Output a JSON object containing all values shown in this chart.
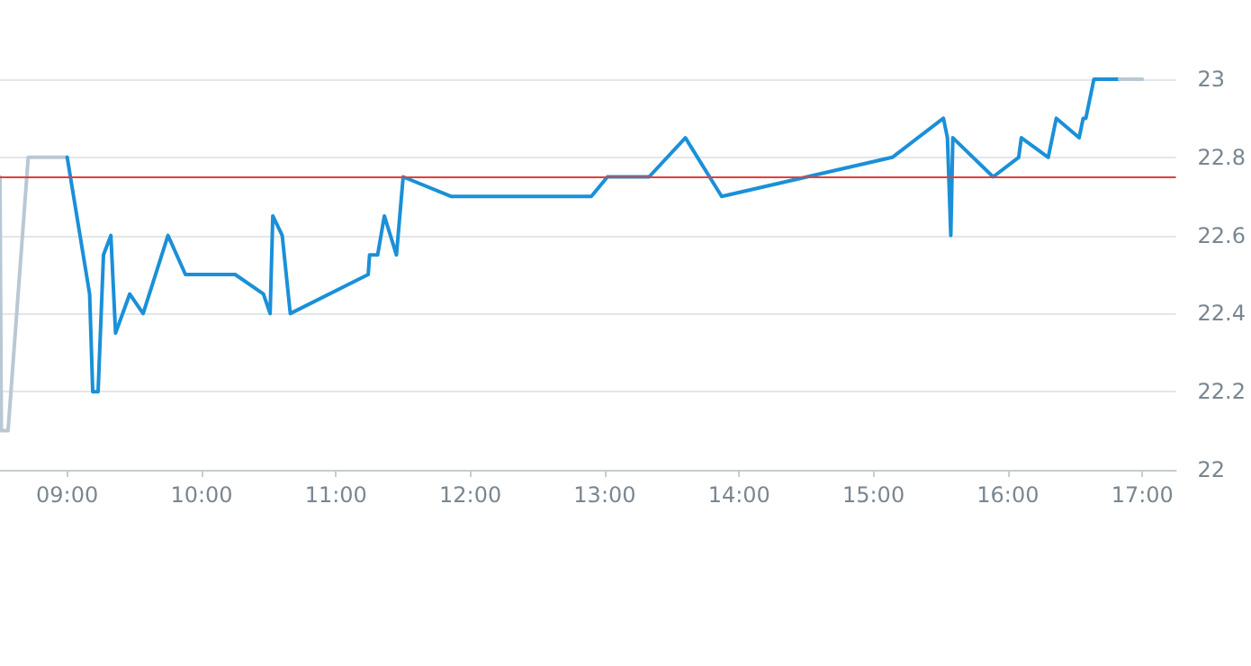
{
  "chart_data": {
    "type": "line",
    "xlim": [
      8.5,
      17.25
    ],
    "ylim": [
      22,
      23
    ],
    "xticks": [
      {
        "value": 9,
        "label": "09:00"
      },
      {
        "value": 10,
        "label": "10:00"
      },
      {
        "value": 11,
        "label": "11:00"
      },
      {
        "value": 12,
        "label": "12:00"
      },
      {
        "value": 13,
        "label": "13:00"
      },
      {
        "value": 14,
        "label": "14:00"
      },
      {
        "value": 15,
        "label": "15:00"
      },
      {
        "value": 16,
        "label": "16:00"
      },
      {
        "value": 17,
        "label": "17:00"
      }
    ],
    "yticks": [
      22,
      22.2,
      22.4,
      22.6,
      22.8,
      23
    ],
    "grid": "y",
    "marker": "none",
    "line_style": "solid",
    "ref_lines": [
      {
        "axis": "y",
        "value": 22.75,
        "label": null,
        "color": "#e0403a"
      }
    ],
    "series": [
      {
        "color": "#b8c8d4",
        "x": [
          8.5,
          8.51,
          8.56,
          8.71,
          9.0
        ],
        "values": [
          22.75,
          22.1,
          22.1,
          22.8,
          22.8
        ]
      },
      {
        "color": "#1a90d8",
        "x": [
          9.0,
          9.167,
          9.19,
          9.23,
          9.27,
          9.325,
          9.36,
          9.465,
          9.565,
          9.75,
          9.88,
          10.25,
          10.46,
          10.51,
          10.53,
          10.6,
          10.66,
          11.24,
          11.25,
          11.31,
          11.36,
          11.45,
          11.5,
          11.855,
          12.9,
          13.02,
          13.33,
          13.6,
          13.87,
          15.14,
          15.52,
          15.55,
          15.575,
          15.59,
          15.89,
          16.08,
          16.1,
          16.3,
          16.36,
          16.53,
          16.56,
          16.58,
          16.64,
          16.83
        ],
        "values": [
          22.8,
          22.45,
          22.2,
          22.2,
          22.55,
          22.6,
          22.35,
          22.45,
          22.4,
          22.6,
          22.5,
          22.5,
          22.45,
          22.4,
          22.65,
          22.6,
          22.4,
          22.5,
          22.55,
          22.55,
          22.65,
          22.55,
          22.75,
          22.7,
          22.7,
          22.75,
          22.75,
          22.85,
          22.7,
          22.8,
          22.9,
          22.85,
          22.6,
          22.85,
          22.75,
          22.8,
          22.85,
          22.8,
          22.9,
          22.85,
          22.9,
          22.9,
          23,
          23
        ]
      },
      {
        "color": "#b8c8d4",
        "x": [
          16.83,
          17.0
        ],
        "values": [
          23,
          23
        ]
      }
    ]
  }
}
